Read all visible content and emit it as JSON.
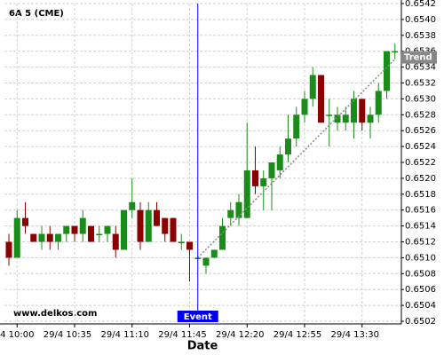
{
  "chart_data": {
    "type": "candlestick",
    "title": "6A 5 (CME)",
    "watermark": "www.delkos.com",
    "x_label": "Date",
    "categories": [
      null,
      "29/4 10:00",
      null,
      null,
      null,
      null,
      null,
      null,
      "29/4 10:35",
      null,
      null,
      null,
      null,
      null,
      null,
      "29/4 11:10",
      null,
      null,
      null,
      null,
      null,
      null,
      "29/4 11:45",
      null,
      null,
      null,
      null,
      null,
      null,
      "29/4 12:20",
      null,
      null,
      null,
      null,
      null,
      null,
      "29/4 12:55",
      null,
      null,
      null,
      null,
      null,
      null,
      "29/4 13:30",
      null,
      null,
      null,
      null
    ],
    "open": [
      0.6512,
      0.651,
      0.6515,
      0.6513,
      0.6512,
      0.6513,
      0.6512,
      0.6513,
      0.6514,
      0.6513,
      0.6514,
      0.6513,
      0.6513,
      0.6513,
      0.6511,
      0.6516,
      0.6516,
      0.6512,
      0.6516,
      0.6515,
      0.6515,
      0.6512,
      0.6512,
      0.651,
      0.6509,
      0.651,
      0.6511,
      0.6515,
      0.6515,
      0.6515,
      0.6521,
      0.6519,
      0.652,
      0.6521,
      0.6523,
      0.6525,
      0.6528,
      0.653,
      0.6533,
      0.6528,
      0.6527,
      0.6527,
      0.6527,
      0.653,
      0.6527,
      0.6528,
      0.6531,
      0.6536
    ],
    "high": [
      0.6513,
      0.6516,
      0.6517,
      0.6513,
      0.6514,
      0.6514,
      0.6513,
      0.6514,
      0.6514,
      0.6516,
      0.6514,
      0.6514,
      0.6514,
      0.6514,
      0.6516,
      0.652,
      0.6517,
      0.6517,
      0.6517,
      0.6515,
      0.6515,
      0.6513,
      0.6512,
      0.651,
      0.651,
      0.6511,
      0.6515,
      0.6517,
      0.6518,
      0.6527,
      0.6524,
      0.6521,
      0.6522,
      0.6524,
      0.6528,
      0.6529,
      0.6531,
      0.6534,
      0.6533,
      0.653,
      0.6529,
      0.6529,
      0.6531,
      0.653,
      0.6529,
      0.6532,
      0.6536,
      0.6537
    ],
    "low": [
      0.6509,
      0.651,
      0.6513,
      0.6512,
      0.6511,
      0.6511,
      0.6511,
      0.6512,
      0.6512,
      0.6512,
      0.6512,
      0.6512,
      0.6512,
      0.651,
      0.6511,
      0.6515,
      0.6511,
      0.6512,
      0.6514,
      0.6512,
      0.6512,
      0.6511,
      0.6507,
      0.651,
      0.6508,
      0.651,
      0.6511,
      0.6514,
      0.6514,
      0.6515,
      0.6518,
      0.6516,
      0.6516,
      0.652,
      0.6522,
      0.6524,
      0.6527,
      0.6529,
      0.6527,
      0.6524,
      0.6526,
      0.6526,
      0.6525,
      0.6526,
      0.6525,
      0.6527,
      0.653,
      0.6535
    ],
    "close": [
      0.651,
      0.6515,
      0.6514,
      0.6512,
      0.6513,
      0.6512,
      0.6513,
      0.6514,
      0.6513,
      0.6515,
      0.6512,
      0.6513,
      0.6514,
      0.6511,
      0.6516,
      0.6517,
      0.6512,
      0.6516,
      0.6514,
      0.6513,
      0.6512,
      0.6512,
      0.6511,
      0.651,
      0.651,
      0.6511,
      0.6514,
      0.6516,
      0.6517,
      0.6521,
      0.6519,
      0.652,
      0.6522,
      0.6523,
      0.6525,
      0.6528,
      0.653,
      0.6533,
      0.6527,
      0.6528,
      0.6528,
      0.6528,
      0.653,
      0.6527,
      0.6528,
      0.6531,
      0.6536,
      0.6536
    ],
    "up_color": "#1a8c1a",
    "down_color": "#8b0000",
    "ylim": [
      0.6502,
      0.6542
    ],
    "yticks": [
      {
        "value": 0.6502,
        "label": "0.6502"
      },
      {
        "value": 0.6504,
        "label": "0.6504"
      },
      {
        "value": 0.6506,
        "label": "0.6506"
      },
      {
        "value": 0.6508,
        "label": "0.6508"
      },
      {
        "value": 0.651,
        "label": "0.6510"
      },
      {
        "value": 0.6512,
        "label": "0.6512"
      },
      {
        "value": 0.6514,
        "label": "0.6514"
      },
      {
        "value": 0.6516,
        "label": "0.6516"
      },
      {
        "value": 0.6518,
        "label": "0.6518"
      },
      {
        "value": 0.652,
        "label": "0.6520"
      },
      {
        "value": 0.6522,
        "label": "0.6522"
      },
      {
        "value": 0.6524,
        "label": "0.6524"
      },
      {
        "value": 0.6526,
        "label": "0.6526"
      },
      {
        "value": 0.6528,
        "label": "0.6528"
      },
      {
        "value": 0.653,
        "label": "0.6530"
      },
      {
        "value": 0.6532,
        "label": "0.6532"
      },
      {
        "value": 0.6534,
        "label": "0.6534"
      },
      {
        "value": 0.6536,
        "label": "0.6536"
      },
      {
        "value": 0.6538,
        "label": "0.6538"
      },
      {
        "value": 0.654,
        "label": "0.6540"
      },
      {
        "value": 0.6542,
        "label": "0.6542"
      }
    ],
    "grid": true,
    "event": {
      "label": "Event",
      "x": 23,
      "color": "#0000ee"
    },
    "trend": {
      "label": "Trend",
      "from": {
        "x": 23,
        "y": 0.651
      },
      "to": {
        "x": 47,
        "y": 0.6535
      },
      "color": "#888888"
    }
  }
}
